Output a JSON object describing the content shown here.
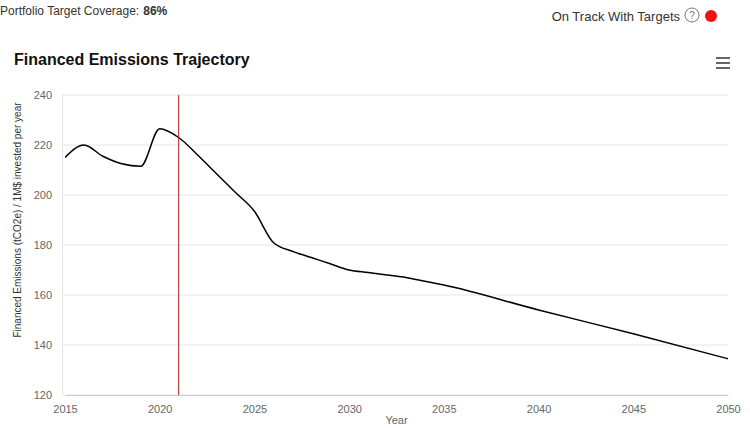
{
  "header": {
    "coverage_label": "Portfolio Target Coverage:",
    "coverage_text": "86%",
    "status_label": "On Track With Targets",
    "help_icon": "?",
    "status_color": "#ee1111"
  },
  "chart_data": {
    "type": "line",
    "title": "Financed Emissions Trajectory",
    "x_label": "Year",
    "y_label": "Financed Emissions (tCO2e) / 1M$ invested per year",
    "x": [
      2015,
      2016,
      2017,
      2018,
      2019,
      2020,
      2021,
      2022,
      2023,
      2024,
      2025,
      2026,
      2027,
      2028,
      2029,
      2030,
      2031,
      2032,
      2033,
      2034,
      2035,
      2040,
      2045,
      2050
    ],
    "values": [
      215,
      220,
      215.5,
      212.5,
      211.5,
      226.5,
      223,
      216,
      208.5,
      201,
      193.5,
      181,
      177.5,
      175,
      172.5,
      170,
      169,
      168,
      167,
      165.5,
      164,
      154,
      144.5,
      134.5
    ],
    "color": "#000000",
    "vertical_line": {
      "x": 2021,
      "color": "#b22222"
    },
    "xlim": [
      2015,
      2050
    ],
    "xticks": [
      2015,
      2020,
      2025,
      2030,
      2035,
      2040,
      2045,
      2050
    ],
    "ylim": [
      120,
      240
    ],
    "yticks": [
      120,
      140,
      160,
      180,
      200,
      220,
      240
    ],
    "grid": true
  }
}
